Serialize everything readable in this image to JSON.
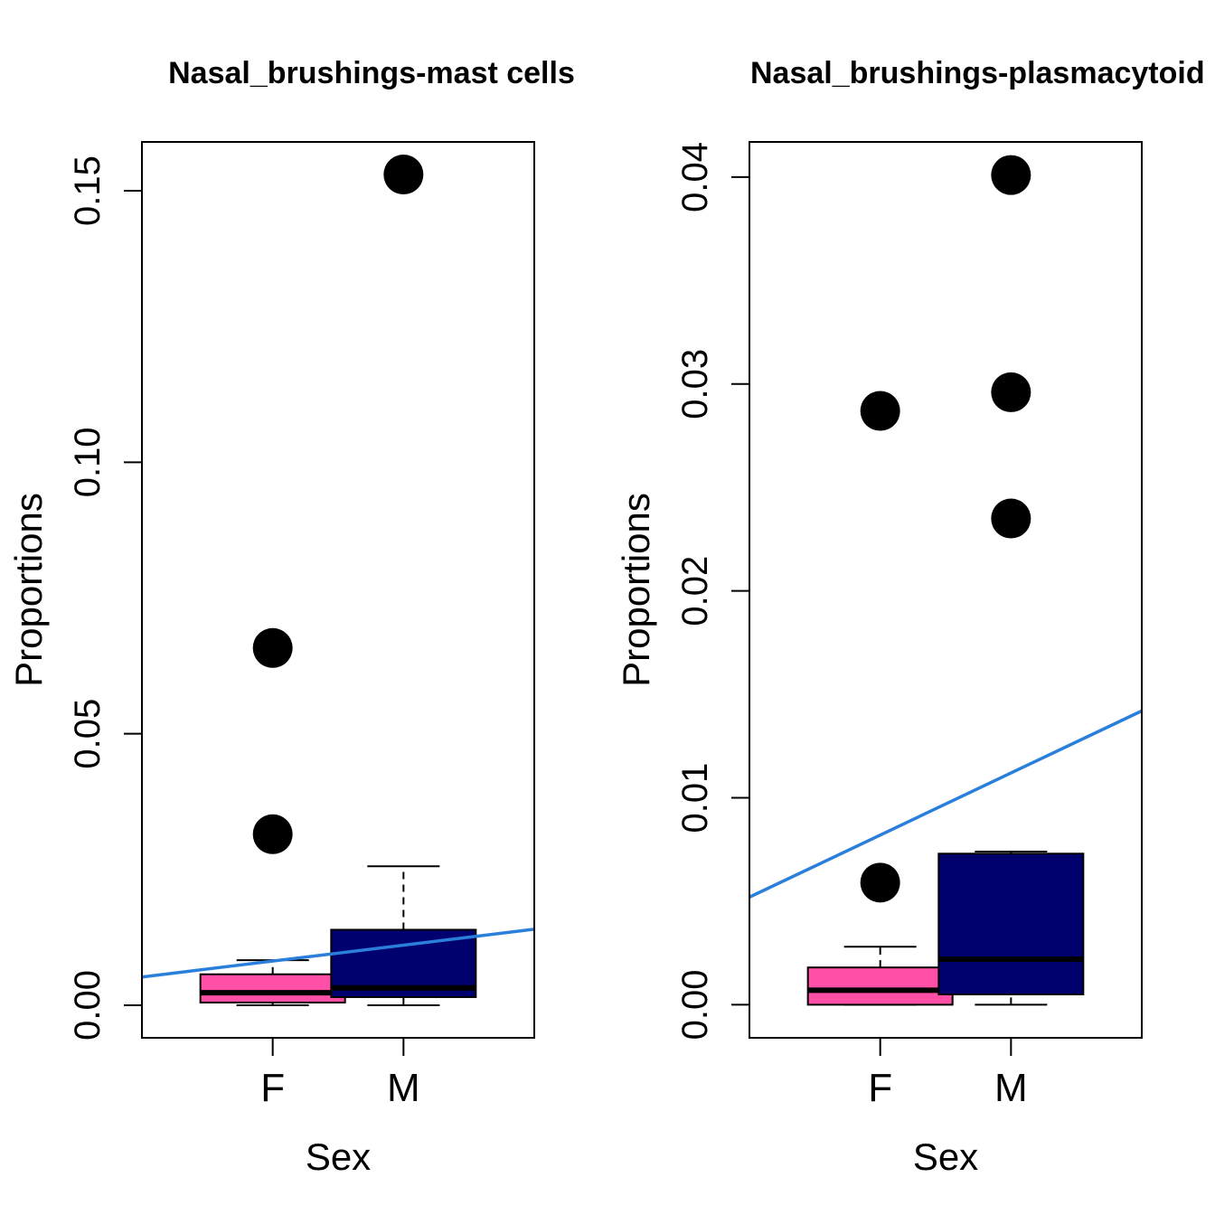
{
  "colors": {
    "female": "#ff4fa6",
    "male": "#00006f",
    "trend": "#2a7fdb",
    "frame": "#000000"
  },
  "chart_data": [
    {
      "type": "boxplot",
      "title": "Nasal_brushings-mast cells",
      "xlabel": "Sex",
      "ylabel": "Proportions",
      "categories": [
        "F",
        "M"
      ],
      "ylim": [
        -0.006,
        0.159
      ],
      "yticks": [
        0.0,
        0.05,
        0.1,
        0.15
      ],
      "ytick_labels": [
        "0.00",
        "0.05",
        "0.10",
        "0.15"
      ],
      "boxes": [
        {
          "name": "F",
          "whisker_low": 0.0,
          "q1": 0.0005,
          "median": 0.0023,
          "q3": 0.0057,
          "whisker_high": 0.0083,
          "outliers": [
            0.0315,
            0.0658
          ]
        },
        {
          "name": "M",
          "whisker_low": 0.0,
          "q1": 0.0015,
          "median": 0.0032,
          "q3": 0.0139,
          "whisker_high": 0.0256,
          "outliers": [
            0.153
          ]
        }
      ],
      "trend": {
        "y_left": 0.0052,
        "y_right": 0.014
      },
      "grid": false,
      "legend": "none"
    },
    {
      "type": "boxplot",
      "title": "Nasal_brushings-plasmacytoid DCs",
      "xlabel": "Sex",
      "ylabel": "Proportions",
      "categories": [
        "F",
        "M"
      ],
      "ylim": [
        -0.0016,
        0.0417
      ],
      "yticks": [
        0.0,
        0.01,
        0.02,
        0.03,
        0.04
      ],
      "ytick_labels": [
        "0.00",
        "0.01",
        "0.02",
        "0.03",
        "0.04"
      ],
      "boxes": [
        {
          "name": "F",
          "whisker_low": 0.0,
          "q1": 0.0,
          "median": 0.0007,
          "q3": 0.0018,
          "whisker_high": 0.0028,
          "outliers": [
            0.0059,
            0.0287
          ]
        },
        {
          "name": "M",
          "whisker_low": 0.0,
          "q1": 0.0005,
          "median": 0.0022,
          "q3": 0.0073,
          "whisker_high": 0.0074,
          "outliers": [
            0.0235,
            0.0296,
            0.0401
          ]
        }
      ],
      "trend": {
        "y_left": 0.0052,
        "y_right": 0.0142
      },
      "grid": false,
      "legend": "none"
    }
  ]
}
